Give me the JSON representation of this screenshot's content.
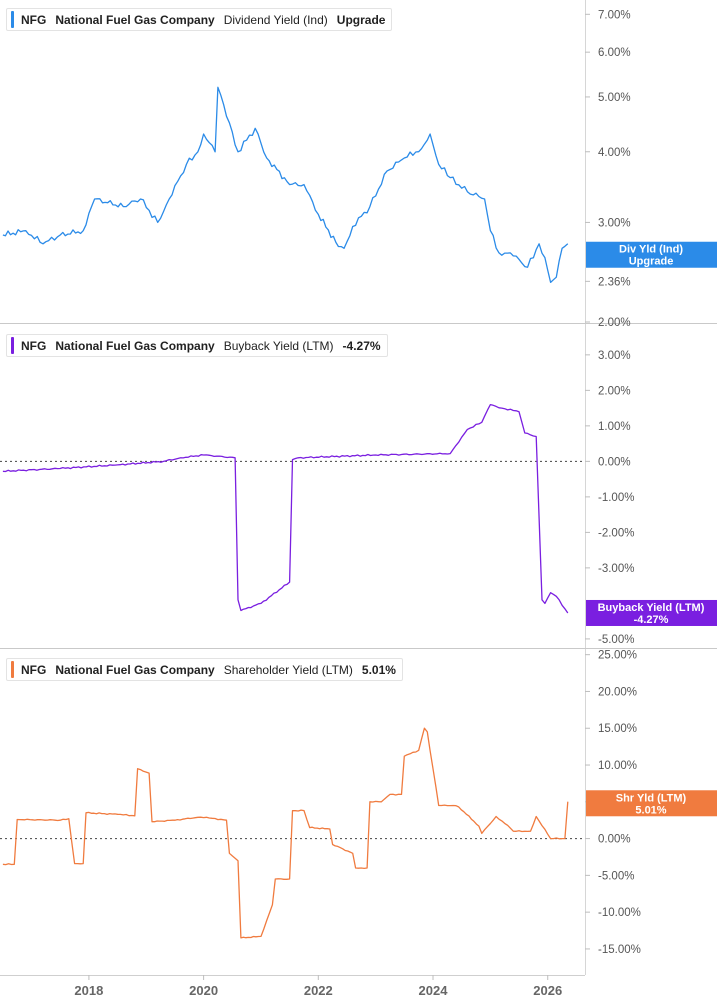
{
  "chart_data": [
    {
      "type": "line",
      "legend": {
        "ticker": "NFG",
        "company": "National Fuel Gas Company",
        "metric": "Dividend Yield (Ind)",
        "value": "Upgrade"
      },
      "axis_tick_labels": [
        "7.00%",
        "6.00%",
        "5.00%",
        "4.00%",
        "3.00%",
        "2.36%",
        "2.00%"
      ],
      "y_ticks": [
        7,
        6,
        5,
        4,
        3,
        2.36,
        2
      ],
      "y_scale": "log",
      "ylim": [
        2,
        7.3
      ],
      "color": "#2b8be8",
      "flag": {
        "line1": "Div Yld (Ind)",
        "line2": "Upgrade",
        "y": 2.63
      },
      "series": [
        {
          "x": [
            2016.5,
            2016.9,
            2017.2,
            2017.5,
            2017.9,
            2018.1,
            2018.6,
            2018.9,
            2019.2,
            2019.4,
            2019.7,
            2019.9,
            2020.0,
            2020.2,
            2020.25,
            2020.45,
            2020.6,
            2020.9,
            2021.1,
            2021.5,
            2021.75,
            2021.85,
            2022.0,
            2022.35,
            2022.45,
            2022.6,
            2022.9,
            2023.2,
            2023.5,
            2023.8,
            2023.95,
            2024.1,
            2024.3,
            2024.6,
            2024.9,
            2025.0,
            2025.15,
            2025.35,
            2025.65,
            2025.85,
            2025.95,
            2026.05,
            2026.15,
            2026.25,
            2026.35
          ],
          "y": [
            2.85,
            2.9,
            2.75,
            2.85,
            2.9,
            3.3,
            3.2,
            3.3,
            3.0,
            3.3,
            3.8,
            4.0,
            4.3,
            4.0,
            5.2,
            4.5,
            4.0,
            4.4,
            3.9,
            3.5,
            3.5,
            3.35,
            3.1,
            2.72,
            2.7,
            2.95,
            3.2,
            3.7,
            3.9,
            4.05,
            4.3,
            3.8,
            3.6,
            3.4,
            3.3,
            2.9,
            2.65,
            2.65,
            2.5,
            2.75,
            2.6,
            2.35,
            2.4,
            2.7,
            2.75
          ]
        }
      ]
    },
    {
      "type": "line",
      "legend": {
        "ticker": "NFG",
        "company": "National Fuel Gas Company",
        "metric": "Buyback Yield (LTM)",
        "value": "-4.27%"
      },
      "axis_tick_labels": [
        "3.00%",
        "2.00%",
        "1.00%",
        "0.00%",
        "-1.00%",
        "-2.00%",
        "-3.00%",
        "-5.00%"
      ],
      "y_ticks": [
        3,
        2,
        1,
        0,
        -1,
        -2,
        -3,
        -5
      ],
      "ylim": [
        -5.2,
        3.7
      ],
      "zero_line": true,
      "color": "#7a1fe0",
      "flag": {
        "line1": "Buyback Yield (LTM)",
        "line2": "-4.27%",
        "y": -4.27
      },
      "series": [
        {
          "x": [
            2016.5,
            2017.5,
            2018.5,
            2019.3,
            2019.6,
            2020.0,
            2020.55,
            2020.6,
            2020.65,
            2021.0,
            2021.5,
            2021.55,
            2021.65,
            2023.0,
            2024.3,
            2024.6,
            2024.85,
            2025.0,
            2025.2,
            2025.5,
            2025.6,
            2025.8,
            2025.9,
            2025.95,
            2026.05,
            2026.15,
            2026.35
          ],
          "y": [
            -0.28,
            -0.2,
            -0.1,
            0.0,
            0.1,
            0.18,
            0.1,
            -3.9,
            -4.2,
            -4.0,
            -3.4,
            0.05,
            0.1,
            0.18,
            0.22,
            0.9,
            1.1,
            1.6,
            1.5,
            1.4,
            0.8,
            0.7,
            -3.9,
            -4.0,
            -3.7,
            -3.8,
            -4.27
          ]
        }
      ]
    },
    {
      "type": "line",
      "legend": {
        "ticker": "NFG",
        "company": "National Fuel Gas Company",
        "metric": "Shareholder Yield (LTM)",
        "value": "5.01%"
      },
      "axis_tick_labels": [
        "25.00%",
        "20.00%",
        "15.00%",
        "10.00%",
        "5.00%",
        "0.00%",
        "-5.00%",
        "-10.00%",
        "-15.00%"
      ],
      "y_ticks": [
        25,
        20,
        15,
        10,
        5,
        0,
        -5,
        -10,
        -15
      ],
      "ylim": [
        -18,
        25.5
      ],
      "zero_line": true,
      "color": "#f07b3f",
      "flag": {
        "line1": "Shr Yld (LTM)",
        "line2": "5.01%",
        "y": 4.8
      },
      "series": [
        {
          "x": [
            2016.5,
            2016.7,
            2016.75,
            2017.5,
            2017.65,
            2017.75,
            2017.9,
            2017.95,
            2018.5,
            2018.8,
            2018.85,
            2019.05,
            2019.1,
            2019.5,
            2019.9,
            2020.1,
            2020.4,
            2020.45,
            2020.6,
            2020.65,
            2021.0,
            2021.2,
            2021.25,
            2021.5,
            2021.55,
            2021.75,
            2021.85,
            2022.2,
            2022.25,
            2022.6,
            2022.65,
            2022.85,
            2022.9,
            2023.1,
            2023.25,
            2023.45,
            2023.5,
            2023.75,
            2023.85,
            2023.9,
            2024.1,
            2024.35,
            2024.45,
            2024.8,
            2024.85,
            2025.1,
            2025.3,
            2025.4,
            2025.7,
            2025.8,
            2026.05,
            2026.1,
            2026.3,
            2026.35
          ],
          "y": [
            -3.5,
            -3.5,
            2.6,
            2.5,
            2.7,
            -3.4,
            -3.4,
            3.5,
            3.3,
            3.1,
            9.5,
            8.9,
            2.3,
            2.5,
            2.9,
            2.8,
            2.5,
            -2.0,
            -3.0,
            -13.5,
            -13.3,
            -9.0,
            -5.5,
            -5.5,
            3.8,
            3.8,
            1.5,
            1.3,
            -0.8,
            -2.0,
            -4.0,
            -4.0,
            5.0,
            5.0,
            6.0,
            6.0,
            11.2,
            12.0,
            15.0,
            14.5,
            4.5,
            4.5,
            4.3,
            1.7,
            0.7,
            3.0,
            1.8,
            1.0,
            1.0,
            3.0,
            0.0,
            0.0,
            0.0,
            5.01
          ]
        }
      ]
    }
  ],
  "x_axis": {
    "labels": [
      "2018",
      "2020",
      "2022",
      "2024",
      "2026"
    ],
    "values": [
      2018,
      2020,
      2022,
      2024,
      2026
    ],
    "xlim": [
      2016.45,
      2026.65
    ]
  }
}
